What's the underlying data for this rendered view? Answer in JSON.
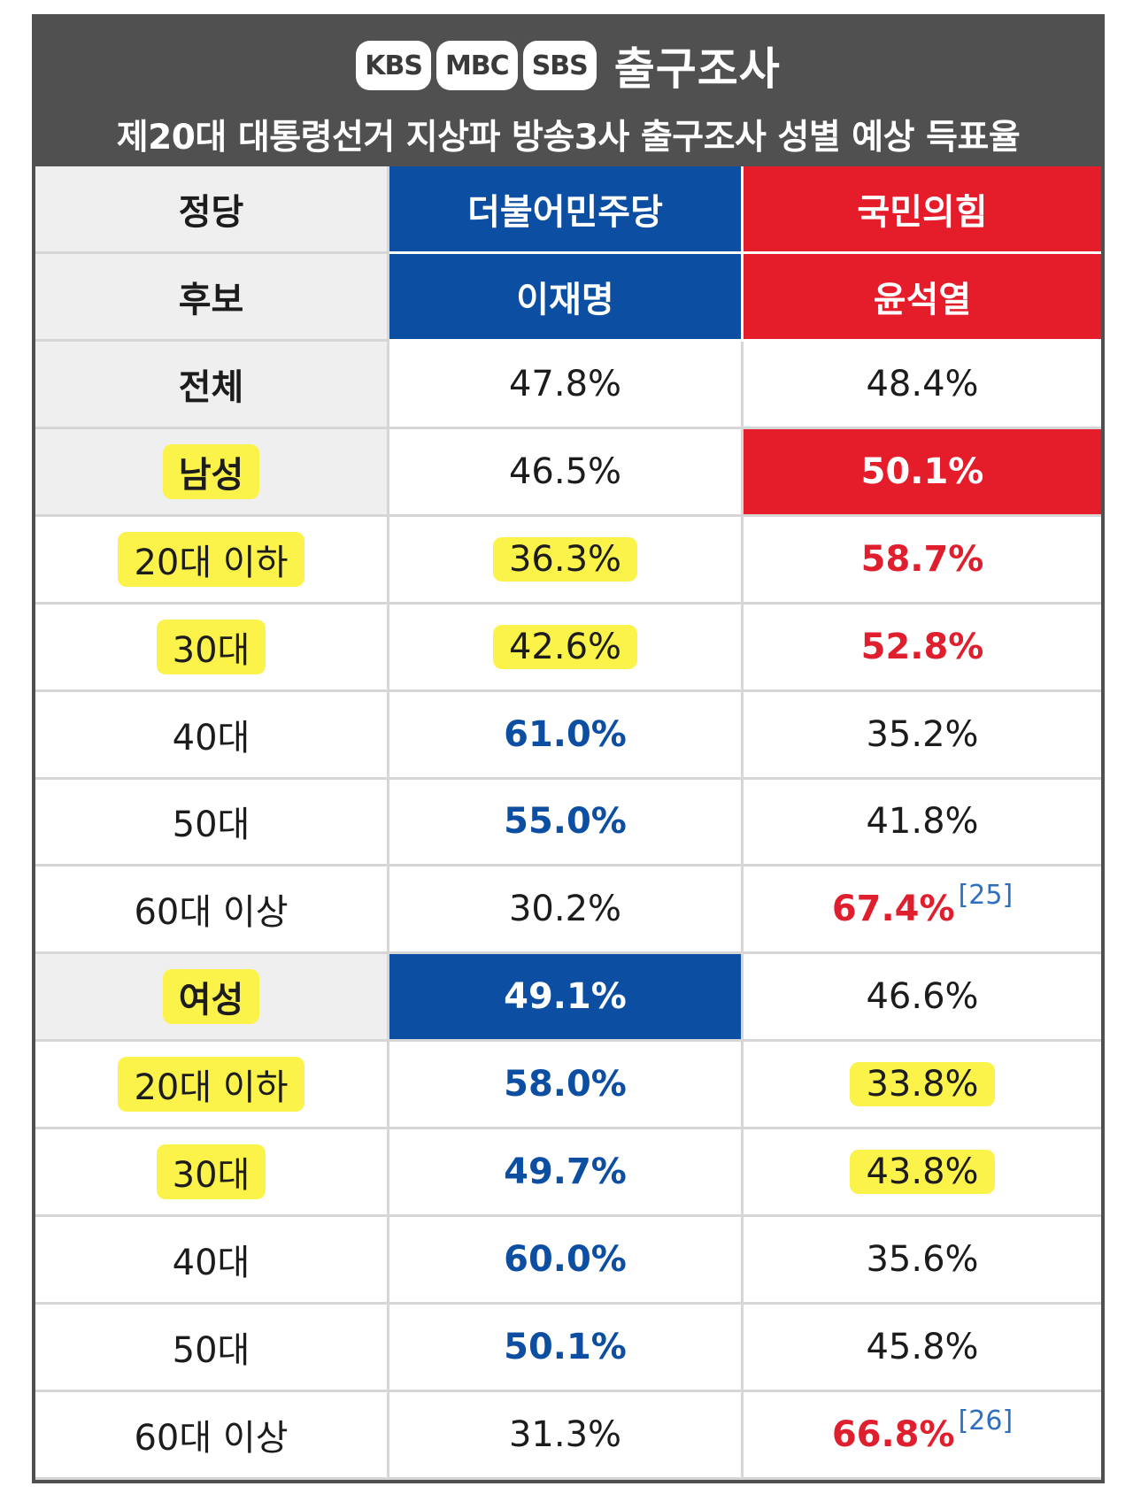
{
  "banner": {
    "logos": [
      "KBS",
      "MBC",
      "SBS"
    ],
    "logo_title": "출구조사",
    "subtitle": "제20대 대통령선거 지상파 방송3사 출구조사 성별 예상 득표율"
  },
  "header": {
    "party_label": "정당",
    "party_dem": "더불어민주당",
    "party_ppp": "국민의힘",
    "candidate_label": "후보",
    "candidate_dem": "이재명",
    "candidate_ppp": "윤석열"
  },
  "rows": [
    {
      "label": "전체",
      "dem": "47.8%",
      "ppp": "48.4%"
    },
    {
      "label": "남성",
      "dem": "46.5%",
      "ppp": "50.1%"
    },
    {
      "label": "20대 이하",
      "dem": "36.3%",
      "ppp": "58.7%"
    },
    {
      "label": "30대",
      "dem": "42.6%",
      "ppp": "52.8%"
    },
    {
      "label": "40대",
      "dem": "61.0%",
      "ppp": "35.2%"
    },
    {
      "label": "50대",
      "dem": "55.0%",
      "ppp": "41.8%"
    },
    {
      "label": "60대 이상",
      "dem": "30.2%",
      "ppp": "67.4%",
      "ppp_ref": "[25]"
    },
    {
      "label": "여성",
      "dem": "49.1%",
      "ppp": "46.6%"
    },
    {
      "label": "20대 이하",
      "dem": "58.0%",
      "ppp": "33.8%"
    },
    {
      "label": "30대",
      "dem": "49.7%",
      "ppp": "43.8%"
    },
    {
      "label": "40대",
      "dem": "60.0%",
      "ppp": "35.6%"
    },
    {
      "label": "50대",
      "dem": "50.1%",
      "ppp": "45.8%"
    },
    {
      "label": "60대 이상",
      "dem": "31.3%",
      "ppp": "66.8%",
      "ppp_ref": "[26]"
    }
  ],
  "colors": {
    "democratic_blue": "#0c4ea2",
    "ppp_red": "#e51d2b",
    "highlight_yellow": "#fbf34a",
    "banner_gray": "#505050"
  }
}
